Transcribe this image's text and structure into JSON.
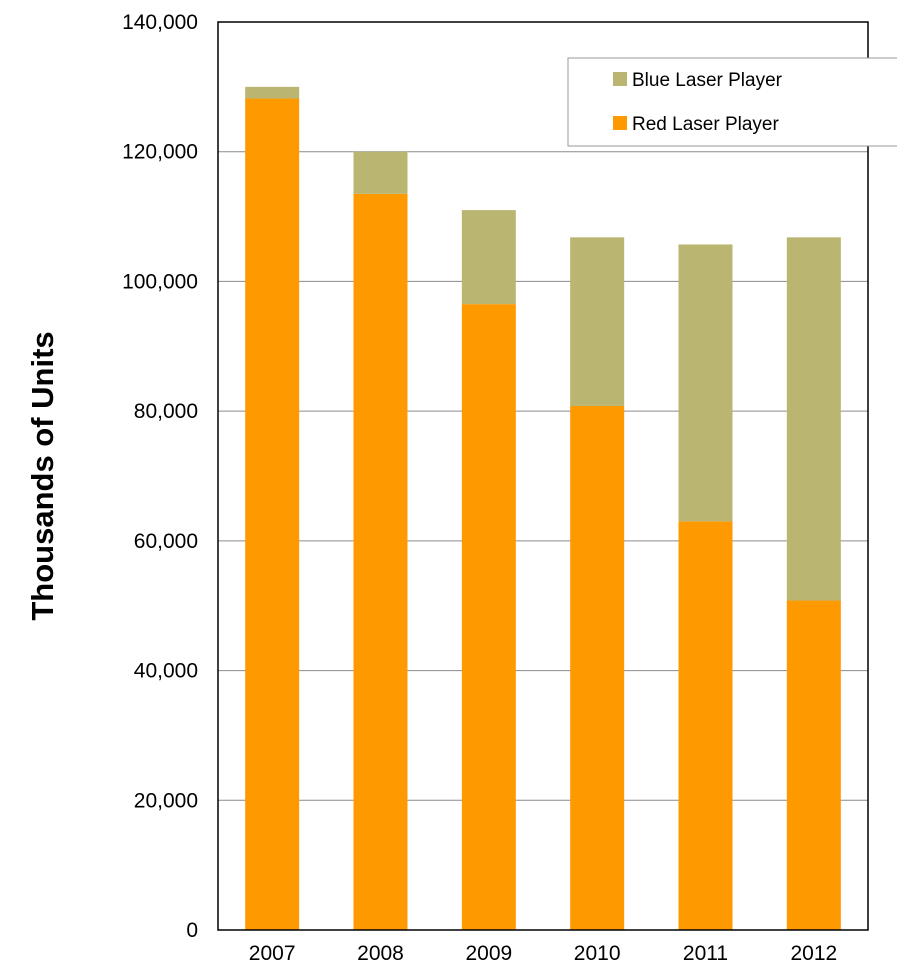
{
  "chart_data": {
    "type": "bar",
    "stacked": true,
    "categories": [
      "2007",
      "2008",
      "2009",
      "2010",
      "2011",
      "2012"
    ],
    "series": [
      {
        "name": "Red Laser Player",
        "color": "#FF9900",
        "values": [
          128200,
          113500,
          96500,
          80800,
          63000,
          50800
        ]
      },
      {
        "name": "Blue Laser Player",
        "color": "#BBB572",
        "values": [
          1800,
          6500,
          14500,
          26000,
          42700,
          56000
        ]
      }
    ],
    "title": "",
    "xlabel": "",
    "ylabel": "Thousands of Units",
    "ylim": [
      0,
      140000
    ],
    "yticks": [
      "0",
      "20,000",
      "40,000",
      "60,000",
      "80,000",
      "100,000",
      "120,000",
      "140,000"
    ],
    "grid": true,
    "legend": {
      "placement": "top-right",
      "entries": [
        "Blue Laser Player",
        "Red Laser Player"
      ]
    }
  }
}
